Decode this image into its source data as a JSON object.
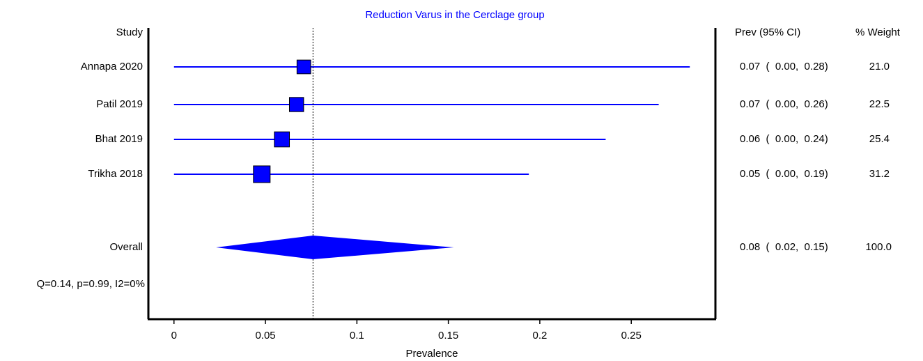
{
  "chart_data": {
    "type": "forest",
    "title": "Reduction Varus in the Cerclage group",
    "study_header": "Study",
    "ci_header": "Prev (95% CI)",
    "weight_header": "% Weight",
    "x_label": "Prevalence",
    "heterogeneity": "Q=0.14, p=0.99, I2=0%",
    "color": "#0000ff",
    "xlim": [
      -0.014,
      0.296
    ],
    "xticks": [
      0,
      0.05,
      0.1,
      0.15,
      0.2,
      0.25
    ],
    "studies": [
      {
        "name": "Annapa 2020",
        "prev": 0.071,
        "lower": 0,
        "upper": 0.282,
        "weight": 21.0,
        "ci_label": "0.07  (  0.00,  0.28)",
        "weight_label": "21.0"
      },
      {
        "name": "Patil 2019",
        "prev": 0.067,
        "lower": 0,
        "upper": 0.265,
        "weight": 22.5,
        "ci_label": "0.07  (  0.00,  0.26)",
        "weight_label": "22.5"
      },
      {
        "name": "Bhat 2019",
        "prev": 0.059,
        "lower": 0,
        "upper": 0.236,
        "weight": 25.4,
        "ci_label": "0.06  (  0.00,  0.24)",
        "weight_label": "25.4"
      },
      {
        "name": "Trikha 2018",
        "prev": 0.048,
        "lower": 0,
        "upper": 0.194,
        "weight": 31.2,
        "ci_label": "0.05  (  0.00,  0.19)",
        "weight_label": "31.2"
      }
    ],
    "overall": {
      "name": "Overall",
      "prev": 0.076,
      "lower": 0.023,
      "upper": 0.153,
      "weight": 100,
      "ci_label": "0.08  (  0.02,  0.15)",
      "weight_label": "100.0"
    }
  }
}
